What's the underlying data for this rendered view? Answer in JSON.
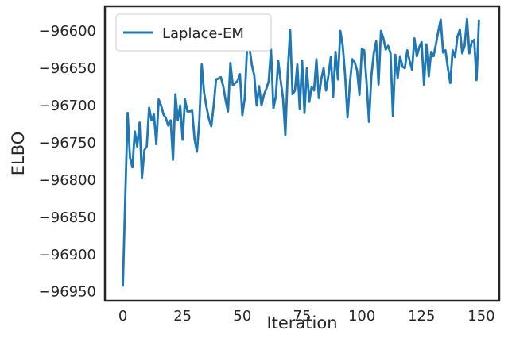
{
  "chart_data": {
    "type": "line",
    "xlabel": "Iteration",
    "ylabel": "ELBO",
    "xlim": [
      -7.5,
      157.5
    ],
    "ylim": [
      -96962,
      -96567
    ],
    "xticks": [
      0,
      25,
      50,
      75,
      100,
      125,
      150
    ],
    "yticks": [
      -96950,
      -96900,
      -96850,
      -96800,
      -96750,
      -96700,
      -96650,
      -96600
    ],
    "grid": false,
    "legend": {
      "position": "top-left"
    },
    "series": [
      {
        "name": "Laplace-EM",
        "color": "#1f77b4",
        "x": [
          0,
          1,
          2,
          3,
          4,
          5,
          6,
          7,
          8,
          9,
          10,
          11,
          12,
          13,
          14,
          15,
          16,
          17,
          18,
          19,
          20,
          21,
          22,
          23,
          24,
          25,
          26,
          27,
          28,
          29,
          30,
          31,
          32,
          33,
          34,
          35,
          36,
          37,
          38,
          39,
          40,
          41,
          42,
          43,
          44,
          45,
          46,
          47,
          48,
          49,
          50,
          51,
          52,
          53,
          54,
          55,
          56,
          57,
          58,
          59,
          60,
          61,
          62,
          63,
          64,
          65,
          66,
          67,
          68,
          69,
          70,
          71,
          72,
          73,
          74,
          75,
          76,
          77,
          78,
          79,
          80,
          81,
          82,
          83,
          84,
          85,
          86,
          87,
          88,
          89,
          90,
          91,
          92,
          93,
          94,
          95,
          96,
          97,
          98,
          99,
          100,
          101,
          102,
          103,
          104,
          105,
          106,
          107,
          108,
          109,
          110,
          111,
          112,
          113,
          114,
          115,
          116,
          117,
          118,
          119,
          120,
          121,
          122,
          123,
          124,
          125,
          126,
          127,
          128,
          129,
          130,
          131,
          132,
          133,
          134,
          135,
          136,
          137,
          138,
          139,
          140,
          141,
          142,
          143,
          144,
          145,
          146,
          147,
          148,
          149
        ],
        "values": [
          -96943,
          -96825,
          -96710,
          -96770,
          -96783,
          -96735,
          -96755,
          -96723,
          -96797,
          -96760,
          -96755,
          -96703,
          -96720,
          -96712,
          -96752,
          -96692,
          -96700,
          -96712,
          -96717,
          -96727,
          -96720,
          -96773,
          -96685,
          -96720,
          -96700,
          -96746,
          -96692,
          -96708,
          -96708,
          -96707,
          -96745,
          -96762,
          -96720,
          -96645,
          -96683,
          -96702,
          -96718,
          -96728,
          -96700,
          -96665,
          -96664,
          -96662,
          -96674,
          -96693,
          -96708,
          -96643,
          -96673,
          -96670,
          -96667,
          -96658,
          -96713,
          -96690,
          -96621,
          -96623,
          -96646,
          -96660,
          -96700,
          -96674,
          -96700,
          -96686,
          -96678,
          -96668,
          -96625,
          -96704,
          -96688,
          -96640,
          -96666,
          -96690,
          -96740,
          -96655,
          -96599,
          -96685,
          -96680,
          -96645,
          -96705,
          -96640,
          -96710,
          -96650,
          -96695,
          -96675,
          -96680,
          -96638,
          -96690,
          -96665,
          -96650,
          -96680,
          -96660,
          -96635,
          -96688,
          -96628,
          -96665,
          -96600,
          -96620,
          -96660,
          -96716,
          -96670,
          -96638,
          -96642,
          -96653,
          -96686,
          -96624,
          -96626,
          -96670,
          -96722,
          -96660,
          -96630,
          -96614,
          -96672,
          -96600,
          -96610,
          -96625,
          -96620,
          -96630,
          -96714,
          -96632,
          -96663,
          -96634,
          -96648,
          -96650,
          -96626,
          -96640,
          -96652,
          -96610,
          -96634,
          -96622,
          -96615,
          -96672,
          -96618,
          -96661,
          -96628,
          -96634,
          -96618,
          -96600,
          -96585,
          -96629,
          -96626,
          -96650,
          -96670,
          -96626,
          -96635,
          -96608,
          -96598,
          -96630,
          -96620,
          -96584,
          -96630,
          -96615,
          -96612,
          -96666,
          -96585
        ]
      }
    ]
  }
}
